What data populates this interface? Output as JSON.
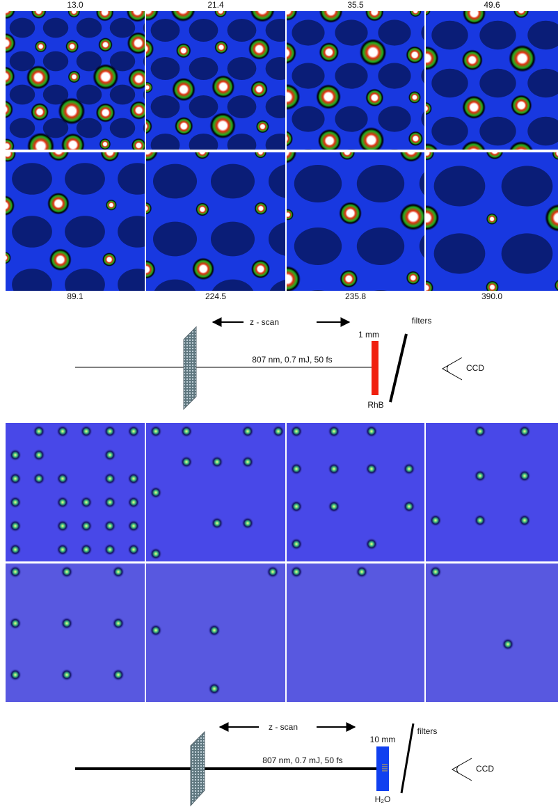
{
  "top_panels": {
    "labels": [
      "13.0",
      "21.4",
      "35.5",
      "49.6",
      "89.1",
      "224.5",
      "235.8",
      "390.0"
    ]
  },
  "setup_1": {
    "scan": "z - scan",
    "beam": "807 nm, 0.7 mJ, 50 fs",
    "cell": "1 mm",
    "filters": "filters",
    "sample": "RhB",
    "detector": "CCD"
  },
  "setup_2": {
    "scan": "z - scan",
    "beam": "807 nm, 0.7 mJ, 50 fs",
    "cell": "10 mm",
    "filters": "filters",
    "sample": "H₂O",
    "detector": "CCD"
  }
}
